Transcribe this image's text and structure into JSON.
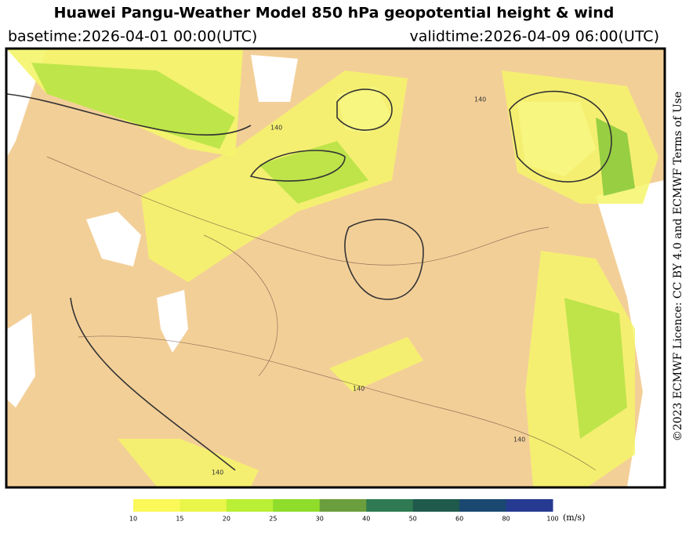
{
  "header": {
    "title": "Huawei Pangu-Weather Model 850 hPa geopotential height & wind",
    "basetime": "basetime:2026-04-01 00:00(UTC)",
    "validtime": "validtime:2026-04-09 06:00(UTC)"
  },
  "licence": "©2023 ECMWF Licence: CC BY 4.0 and ECMWF Terms of Use",
  "map": {
    "contour_labels": [
      "140",
      "140",
      "140",
      "140",
      "140"
    ]
  },
  "colorbar": {
    "ticks": [
      10,
      15,
      20,
      25,
      30,
      40,
      50,
      60,
      80,
      100
    ],
    "colors": [
      "#fbf85a",
      "#e9f548",
      "#b9ef35",
      "#8fdc2b",
      "#6b9e3c",
      "#2f7a52",
      "#1f5a4c",
      "#1b4870",
      "#263a92",
      "#2b34b4"
    ],
    "unit": "(m/s)"
  }
}
